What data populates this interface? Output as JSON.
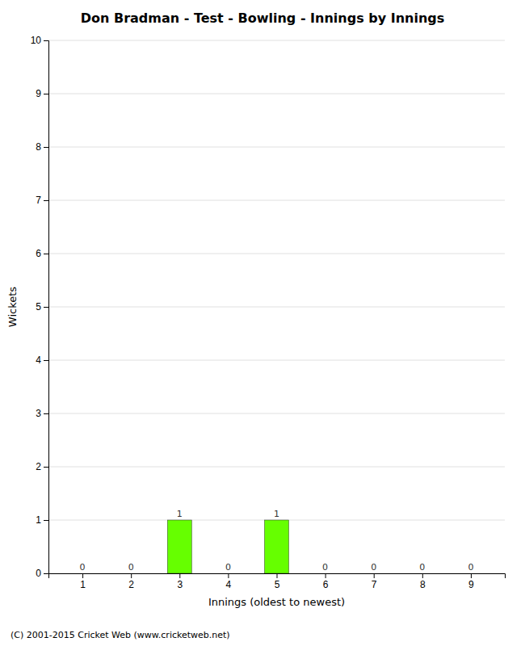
{
  "chart_data": {
    "type": "bar",
    "title": "Don Bradman - Test - Bowling - Innings by Innings",
    "xlabel": "Innings (oldest to newest)",
    "ylabel": "Wickets",
    "x": [
      1,
      2,
      3,
      4,
      5,
      6,
      7,
      8,
      9
    ],
    "values": [
      0,
      0,
      1,
      0,
      1,
      0,
      0,
      0,
      0
    ],
    "color": "#66ff00",
    "xlim": [
      0.3,
      9.7
    ],
    "xticks": [
      1,
      2,
      3,
      4,
      5,
      6,
      7,
      8,
      9
    ],
    "ylim": [
      0,
      10
    ],
    "yticks": [
      0,
      1,
      2,
      3,
      4,
      5,
      6,
      7,
      8,
      9,
      10
    ],
    "grid": "y",
    "data_labels": true,
    "annotations": [
      "(C) 2001-2015 Cricket Web (www.cricketweb.net)"
    ]
  }
}
